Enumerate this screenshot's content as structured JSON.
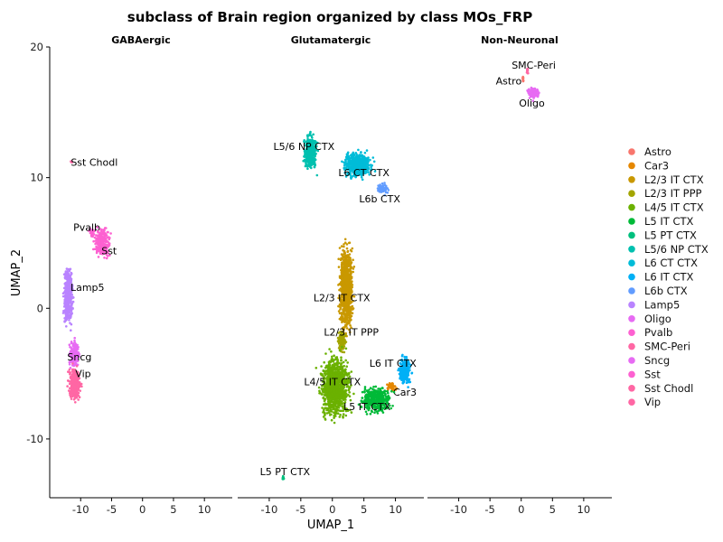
{
  "chart_data": {
    "type": "scatter",
    "title": "subclass of Brain region organized by class MOs_FRP",
    "xlabel": "UMAP_1",
    "ylabel": "UMAP_2",
    "xlim": [
      -15,
      14.5
    ],
    "ylim": [
      -14.5,
      20
    ],
    "x_ticks": [
      -10,
      -5,
      0,
      5,
      10
    ],
    "x_tick_labels": [
      "-10",
      "-5",
      "0",
      "5",
      "10"
    ],
    "y_ticks": [
      -10,
      0,
      10,
      20
    ],
    "y_tick_labels": [
      "-10",
      "0",
      "10",
      "20"
    ],
    "grid": false,
    "legend_position": "right",
    "panels": [
      {
        "name": "GABAergic",
        "clusters": [
          {
            "subclass": "Sst Chodl",
            "x": -11.5,
            "y": 11.2,
            "label": "Sst Chodl",
            "lx": -7.8,
            "ly": 11.2
          },
          {
            "subclass": "Pvalb",
            "x": -8.2,
            "y": 5.8,
            "label": "Pvalb",
            "lx": -9.0,
            "ly": 6.2
          },
          {
            "subclass": "Sst",
            "x": -6.5,
            "y": 5.0,
            "label": "Sst",
            "lx": -5.4,
            "ly": 4.4
          },
          {
            "subclass": "Lamp5",
            "x": -12.0,
            "y": 1.0,
            "label": "Lamp5",
            "lx": -8.9,
            "ly": 1.6
          },
          {
            "subclass": "Sncg",
            "x": -11.0,
            "y": -3.5,
            "label": "Sncg",
            "lx": -10.2,
            "ly": -3.7
          },
          {
            "subclass": "Vip",
            "x": -11.0,
            "y": -5.8,
            "label": "Vip",
            "lx": -9.6,
            "ly": -5.0
          }
        ]
      },
      {
        "name": "Glutamatergic",
        "clusters": [
          {
            "subclass": "L5/6 NP CTX",
            "x": -3.5,
            "y": 12.0,
            "label": "L5/6 NP CTX",
            "lx": -4.5,
            "ly": 12.4
          },
          {
            "subclass": "L6 CT CTX",
            "x": 4.0,
            "y": 11.0,
            "label": "L6 CT CTX",
            "lx": 5.0,
            "ly": 10.4
          },
          {
            "subclass": "L6b CTX",
            "x": 8.0,
            "y": 9.2,
            "label": "L6b CTX",
            "lx": 7.5,
            "ly": 8.4
          },
          {
            "subclass": "L2/3 IT CTX",
            "x": 2.2,
            "y": 1.5,
            "label": "L2/3 IT CTX",
            "lx": 1.5,
            "ly": 0.8
          },
          {
            "subclass": "L2/3 IT PPP",
            "x": 1.5,
            "y": -2.5,
            "label": "L2/3 IT PPP",
            "lx": 3.0,
            "ly": -1.8
          },
          {
            "subclass": "L4/5 IT CTX",
            "x": 0.5,
            "y": -6.0,
            "label": "L4/5 IT CTX",
            "lx": 0.0,
            "ly": -5.6
          },
          {
            "subclass": "L6 IT CTX",
            "x": 11.5,
            "y": -4.8,
            "label": "L6 IT CTX",
            "lx": 9.6,
            "ly": -4.2
          },
          {
            "subclass": "Car3",
            "x": 9.5,
            "y": -6.0,
            "label": "Car3",
            "lx": 11.5,
            "ly": -6.4
          },
          {
            "subclass": "L5 IT CTX",
            "x": 7.0,
            "y": -7.0,
            "label": "L5 IT CTX",
            "lx": 5.5,
            "ly": -7.5
          },
          {
            "subclass": "L5 PT CTX",
            "x": -7.8,
            "y": -13.0,
            "label": "L5 PT CTX",
            "lx": -7.5,
            "ly": -12.5
          }
        ]
      },
      {
        "name": "Non-Neuronal",
        "clusters": [
          {
            "subclass": "SMC-Peri",
            "x": 1.0,
            "y": 18.2,
            "label": "SMC-Peri",
            "lx": 2.0,
            "ly": 18.6
          },
          {
            "subclass": "Astro",
            "x": 0.3,
            "y": 17.5,
            "label": "Astro",
            "lx": -2.0,
            "ly": 17.4
          },
          {
            "subclass": "Oligo",
            "x": 2.0,
            "y": 16.5,
            "label": "Oligo",
            "lx": 1.7,
            "ly": 15.7
          }
        ]
      }
    ],
    "legend": [
      {
        "name": "Astro",
        "color": "#F8766D"
      },
      {
        "name": "Car3",
        "color": "#E58700"
      },
      {
        "name": "L2/3 IT CTX",
        "color": "#C99800"
      },
      {
        "name": "L2/3 IT PPP",
        "color": "#A3A500"
      },
      {
        "name": "L4/5 IT CTX",
        "color": "#6BB100"
      },
      {
        "name": "L5 IT CTX",
        "color": "#00BA38"
      },
      {
        "name": "L5 PT CTX",
        "color": "#00BF7D"
      },
      {
        "name": "L5/6 NP CTX",
        "color": "#00C0AF"
      },
      {
        "name": "L6 CT CTX",
        "color": "#00BCD8"
      },
      {
        "name": "L6 IT CTX",
        "color": "#00B0F6"
      },
      {
        "name": "L6b CTX",
        "color": "#619CFF"
      },
      {
        "name": "Lamp5",
        "color": "#B983FF"
      },
      {
        "name": "Oligo",
        "color": "#E76BF3"
      },
      {
        "name": "Pvalb",
        "color": "#FD61D1"
      },
      {
        "name": "SMC-Peri",
        "color": "#FF67A4"
      }
    ],
    "point_colors": {
      "Astro": "#F8766D",
      "Car3": "#E58700",
      "L2/3 IT CTX": "#C99800",
      "L2/3 IT PPP": "#A3A500",
      "L4/5 IT CTX": "#6BB100",
      "L5 IT CTX": "#00BA38",
      "L5 PT CTX": "#00BF7D",
      "L5/6 NP CTX": "#00C0AF",
      "L6 CT CTX": "#00BCD8",
      "L6 IT CTX": "#00B0F6",
      "L6b CTX": "#619CFF",
      "Lamp5": "#B983FF",
      "Oligo": "#E76BF3",
      "Pvalb": "#FD61D1",
      "SMC-Peri": "#FF67A4",
      "Sncg": "#E76BF3",
      "Sst": "#FD61D1",
      "Sst Chodl": "#FF67A4",
      "Vip": "#FF67A4"
    }
  }
}
